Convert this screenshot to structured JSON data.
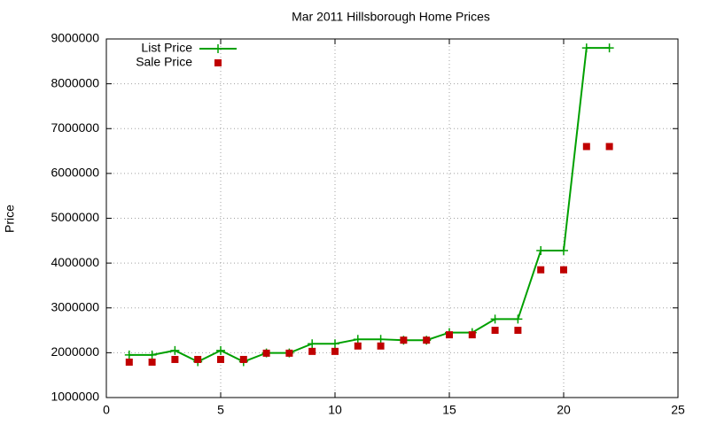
{
  "chart_data": {
    "type": "line",
    "title": "Mar 2011 Hillsborough Home Prices",
    "y_label": "Price",
    "x": [
      1,
      2,
      3,
      4,
      5,
      6,
      7,
      8,
      9,
      10,
      11,
      12,
      13,
      14,
      15,
      16,
      17,
      18,
      19,
      20,
      21,
      22
    ],
    "series": [
      {
        "name": "List Price",
        "color": "#00a000",
        "style": "linespoints",
        "values": [
          1950000,
          1950000,
          2050000,
          1800000,
          2050000,
          1800000,
          1995000,
          1995000,
          2200000,
          2200000,
          2300000,
          2300000,
          2280000,
          2280000,
          2450000,
          2450000,
          2750000,
          2750000,
          4280000,
          4280000,
          8800000,
          8800000
        ]
      },
      {
        "name": "Sale Price",
        "color": "#c00000",
        "style": "points",
        "values": [
          1790000,
          1790000,
          1850000,
          1850000,
          1850000,
          1850000,
          1990000,
          1990000,
          2030000,
          2030000,
          2150000,
          2150000,
          2280000,
          2280000,
          2400000,
          2400000,
          2500000,
          2500000,
          3850000,
          3850000,
          6600000,
          6600000
        ]
      }
    ],
    "xlim": [
      0,
      25
    ],
    "xticks": [
      0,
      5,
      10,
      15,
      20,
      25
    ],
    "ylim": [
      1000000,
      9000000
    ],
    "yticks": [
      1000000,
      2000000,
      3000000,
      4000000,
      5000000,
      6000000,
      7000000,
      8000000,
      9000000
    ],
    "grid": true,
    "legend": "top-left"
  }
}
